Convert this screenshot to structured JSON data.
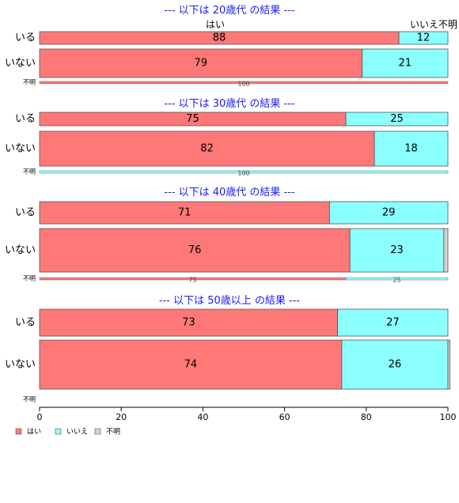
{
  "chart_data": {
    "type": "bar",
    "orientation": "horizontal",
    "stacked": true,
    "xlim": [
      0,
      100
    ],
    "xticks": [
      0,
      20,
      40,
      60,
      80,
      100
    ],
    "legend_position": "bottom-left",
    "colors": {
      "はい": "#ff7878",
      "いいえ": "#8cffff",
      "不明": "#d3d3d3",
      "title": "#1a1aff"
    },
    "series_names": [
      "はい",
      "いいえ",
      "不明"
    ],
    "top_labels": [
      "はい",
      "いいえ",
      "不明"
    ],
    "panels": [
      {
        "title": "--- 以下は 20歳代 の結果 ---",
        "rows": [
          {
            "label": "いる",
            "values": [
              88,
              12,
              0
            ],
            "labels": [
              "88",
              "12",
              ""
            ]
          },
          {
            "label": "いない",
            "values": [
              79,
              21,
              0
            ],
            "labels": [
              "79",
              "21",
              ""
            ]
          },
          {
            "label": "不明",
            "values": [
              100,
              0,
              0
            ],
            "labels": [
              "100",
              "",
              ""
            ]
          }
        ]
      },
      {
        "title": "--- 以下は 30歳代 の結果 ---",
        "rows": [
          {
            "label": "いる",
            "values": [
              75,
              25,
              0
            ],
            "labels": [
              "75",
              "25",
              ""
            ]
          },
          {
            "label": "いない",
            "values": [
              82,
              18,
              0
            ],
            "labels": [
              "82",
              "18",
              ""
            ]
          },
          {
            "label": "不明",
            "values": [
              0,
              100,
              0
            ],
            "labels": [
              "",
              "100",
              ""
            ]
          }
        ]
      },
      {
        "title": "--- 以下は 40歳代 の結果 ---",
        "rows": [
          {
            "label": "いる",
            "values": [
              71,
              29,
              0
            ],
            "labels": [
              "71",
              "29",
              ""
            ]
          },
          {
            "label": "いない",
            "values": [
              76,
              23,
              1
            ],
            "labels": [
              "76",
              "23",
              ""
            ]
          },
          {
            "label": "不明",
            "values": [
              75,
              25,
              0
            ],
            "labels": [
              "75",
              "25",
              ""
            ]
          }
        ]
      },
      {
        "title": "--- 以下は 50歳以上 の結果 ---",
        "rows": [
          {
            "label": "いる",
            "values": [
              73,
              27,
              0
            ],
            "labels": [
              "73",
              "27",
              ""
            ]
          },
          {
            "label": "いない",
            "values": [
              74,
              26,
              0.5
            ],
            "labels": [
              "74",
              "26",
              ""
            ]
          },
          {
            "label": "不明",
            "values": [
              0,
              0,
              0
            ],
            "labels": [
              "",
              "",
              ""
            ]
          }
        ]
      }
    ]
  }
}
